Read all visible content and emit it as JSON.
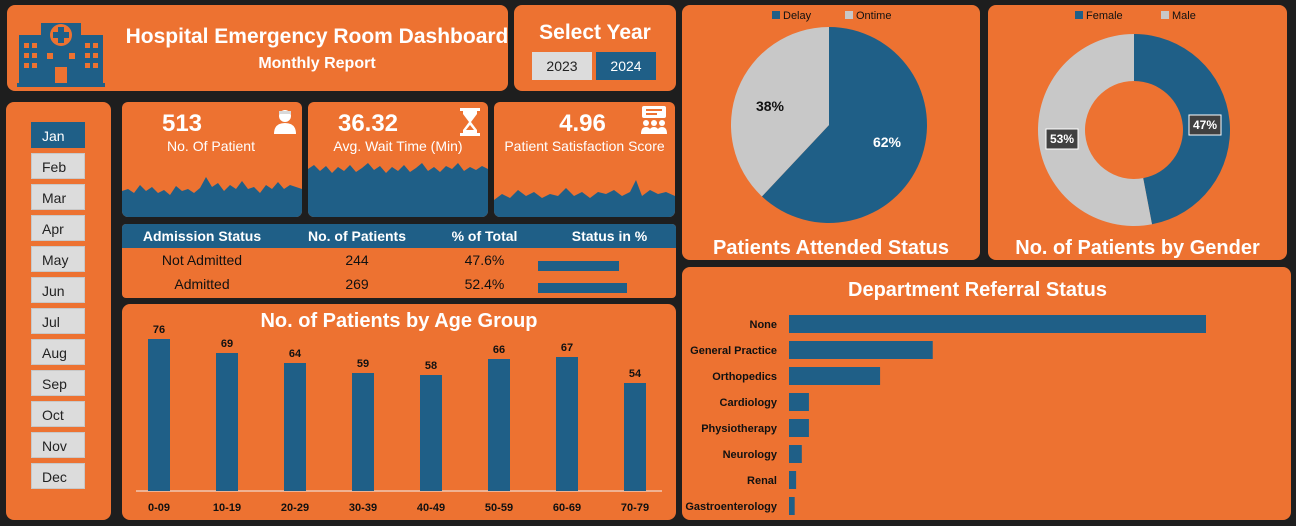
{
  "header": {
    "title": "Hospital Emergency Room Dashboard",
    "subtitle": "Monthly Report"
  },
  "year_selector": {
    "title": "Select Year",
    "options": [
      "2023",
      "2024"
    ],
    "selected": "2024"
  },
  "months": [
    "Jan",
    "Feb",
    "Mar",
    "Apr",
    "May",
    "Jun",
    "Jul",
    "Aug",
    "Sep",
    "Oct",
    "Nov",
    "Dec"
  ],
  "selected_month": "Jan",
  "kpis": [
    {
      "value": "513",
      "label": "No. Of Patient",
      "icon": "patient-icon"
    },
    {
      "value": "36.32",
      "label": "Avg. Wait Time (Min)",
      "icon": "hourglass-icon"
    },
    {
      "value": "4.96",
      "label": "Patient Satisfaction Score",
      "icon": "group-feedback-icon"
    }
  ],
  "admission_table": {
    "headers": [
      "Admission Status",
      "No. of Patients",
      "% of Total",
      "Status in %"
    ],
    "rows": [
      {
        "status": "Not Admitted",
        "patients": "244",
        "pct": "47.6%",
        "pct_value": 47.6
      },
      {
        "status": "Admitted",
        "patients": "269",
        "pct": "52.4%",
        "pct_value": 52.4
      }
    ]
  },
  "colors": {
    "panel": "#ed7231",
    "accent": "#1f5f87",
    "grey": "#c8c8c8",
    "background": "#1e1e1e"
  },
  "chart_data": [
    {
      "type": "bar",
      "title": "No. of Patients by Age Group",
      "categories": [
        "0-09",
        "10-19",
        "20-29",
        "30-39",
        "40-49",
        "50-59",
        "60-69",
        "70-79"
      ],
      "values": [
        76,
        69,
        64,
        59,
        58,
        66,
        67,
        54
      ],
      "ylim": [
        0,
        80
      ]
    },
    {
      "type": "pie",
      "title": "Patients Attended Status",
      "legend": "top",
      "labels": [
        "Delay",
        "Ontime"
      ],
      "values": [
        62,
        38
      ],
      "data_labels": [
        "62%",
        "38%"
      ]
    },
    {
      "type": "pie",
      "title": "No. of Patients by Gender",
      "legend": "top",
      "labels": [
        "Female",
        "Male"
      ],
      "values": [
        47,
        53
      ],
      "data_labels": [
        "47%",
        "53%"
      ]
    },
    {
      "type": "bar",
      "orientation": "horizontal",
      "title": "Department Referral Status",
      "categories": [
        "None",
        "General Practice",
        "Orthopedics",
        "Cardiology",
        "Physiotherapy",
        "Neurology",
        "Renal",
        "Gastroenterology"
      ],
      "values": [
        293,
        101,
        64,
        14,
        14,
        9,
        5,
        4
      ],
      "xlim": [
        0,
        300
      ]
    }
  ]
}
